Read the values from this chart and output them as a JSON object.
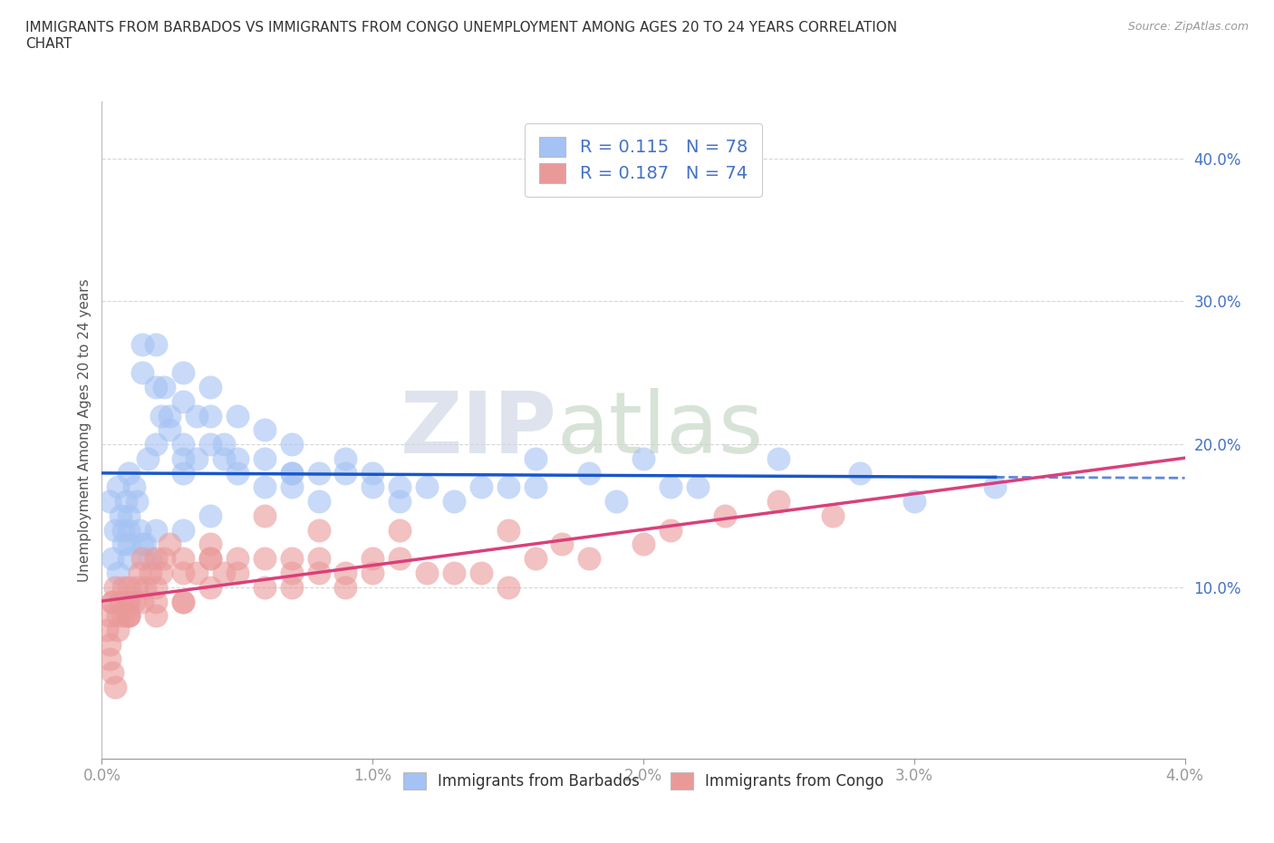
{
  "title": "IMMIGRANTS FROM BARBADOS VS IMMIGRANTS FROM CONGO UNEMPLOYMENT AMONG AGES 20 TO 24 YEARS CORRELATION\nCHART",
  "source": "Source: ZipAtlas.com",
  "ylabel": "Unemployment Among Ages 20 to 24 years",
  "legend_label1": "Immigrants from Barbados",
  "legend_label2": "Immigrants from Congo",
  "R1": 0.115,
  "N1": 78,
  "R2": 0.187,
  "N2": 74,
  "color1": "#a4c2f4",
  "color2": "#ea9999",
  "line_color1": "#1a56cc",
  "line_color2": "#d9407a",
  "xlim": [
    0.0,
    0.04
  ],
  "ylim": [
    -0.02,
    0.44
  ],
  "xticks": [
    0.0,
    0.01,
    0.02,
    0.03,
    0.04
  ],
  "yticks": [
    0.1,
    0.2,
    0.3,
    0.4
  ],
  "xticklabels": [
    "0.0%",
    "1.0%",
    "2.0%",
    "3.0%",
    "4.0%"
  ],
  "yticklabels": [
    "10.0%",
    "20.0%",
    "30.0%",
    "40.0%"
  ],
  "watermark_zip": "ZIP",
  "watermark_atlas": "atlas",
  "background_color": "#ffffff",
  "tick_color": "#4472c4",
  "barbados_x": [
    0.0003,
    0.0005,
    0.0006,
    0.0007,
    0.0008,
    0.0009,
    0.001,
    0.001,
    0.001,
    0.001,
    0.0012,
    0.0013,
    0.0014,
    0.0015,
    0.0015,
    0.0016,
    0.0017,
    0.0018,
    0.002,
    0.002,
    0.002,
    0.0022,
    0.0023,
    0.0025,
    0.0025,
    0.003,
    0.003,
    0.003,
    0.003,
    0.003,
    0.0035,
    0.0035,
    0.004,
    0.004,
    0.004,
    0.0045,
    0.0045,
    0.005,
    0.005,
    0.005,
    0.006,
    0.006,
    0.006,
    0.007,
    0.007,
    0.007,
    0.008,
    0.008,
    0.009,
    0.009,
    0.01,
    0.01,
    0.011,
    0.012,
    0.013,
    0.014,
    0.015,
    0.016,
    0.018,
    0.019,
    0.02,
    0.021,
    0.022,
    0.025,
    0.028,
    0.03,
    0.033,
    0.016,
    0.011,
    0.007,
    0.004,
    0.003,
    0.002,
    0.0015,
    0.001,
    0.0008,
    0.0006,
    0.0004
  ],
  "barbados_y": [
    0.16,
    0.14,
    0.17,
    0.15,
    0.14,
    0.16,
    0.15,
    0.18,
    0.13,
    0.14,
    0.17,
    0.16,
    0.14,
    0.27,
    0.25,
    0.13,
    0.19,
    0.12,
    0.2,
    0.24,
    0.27,
    0.22,
    0.24,
    0.22,
    0.21,
    0.23,
    0.25,
    0.19,
    0.18,
    0.2,
    0.22,
    0.19,
    0.2,
    0.22,
    0.24,
    0.19,
    0.2,
    0.22,
    0.18,
    0.19,
    0.21,
    0.17,
    0.19,
    0.2,
    0.18,
    0.17,
    0.18,
    0.16,
    0.18,
    0.19,
    0.17,
    0.18,
    0.17,
    0.17,
    0.16,
    0.17,
    0.17,
    0.17,
    0.18,
    0.16,
    0.19,
    0.17,
    0.17,
    0.19,
    0.18,
    0.16,
    0.17,
    0.19,
    0.16,
    0.18,
    0.15,
    0.14,
    0.14,
    0.13,
    0.12,
    0.13,
    0.11,
    0.12
  ],
  "congo_x": [
    0.0002,
    0.0003,
    0.0004,
    0.0005,
    0.0006,
    0.0007,
    0.0008,
    0.0009,
    0.001,
    0.001,
    0.001,
    0.001,
    0.0012,
    0.0013,
    0.0014,
    0.0015,
    0.0016,
    0.0018,
    0.002,
    0.002,
    0.002,
    0.0022,
    0.0023,
    0.0025,
    0.003,
    0.003,
    0.003,
    0.0035,
    0.004,
    0.004,
    0.004,
    0.0045,
    0.005,
    0.005,
    0.006,
    0.006,
    0.007,
    0.007,
    0.007,
    0.008,
    0.008,
    0.009,
    0.009,
    0.01,
    0.01,
    0.011,
    0.012,
    0.013,
    0.014,
    0.015,
    0.016,
    0.017,
    0.018,
    0.02,
    0.021,
    0.023,
    0.025,
    0.027,
    0.015,
    0.011,
    0.008,
    0.006,
    0.004,
    0.003,
    0.002,
    0.0015,
    0.001,
    0.0008,
    0.0006,
    0.0004,
    0.0003,
    0.0003,
    0.0004,
    0.0005
  ],
  "congo_y": [
    0.07,
    0.08,
    0.09,
    0.1,
    0.08,
    0.09,
    0.1,
    0.09,
    0.1,
    0.08,
    0.08,
    0.09,
    0.09,
    0.1,
    0.11,
    0.12,
    0.1,
    0.11,
    0.12,
    0.1,
    0.09,
    0.11,
    0.12,
    0.13,
    0.12,
    0.11,
    0.09,
    0.11,
    0.13,
    0.12,
    0.1,
    0.11,
    0.12,
    0.11,
    0.12,
    0.1,
    0.11,
    0.12,
    0.1,
    0.12,
    0.11,
    0.1,
    0.11,
    0.12,
    0.11,
    0.12,
    0.11,
    0.11,
    0.11,
    0.1,
    0.12,
    0.13,
    0.12,
    0.13,
    0.14,
    0.15,
    0.16,
    0.15,
    0.14,
    0.14,
    0.14,
    0.15,
    0.12,
    0.09,
    0.08,
    0.09,
    0.08,
    0.08,
    0.07,
    0.09,
    0.06,
    0.05,
    0.04,
    0.03
  ]
}
